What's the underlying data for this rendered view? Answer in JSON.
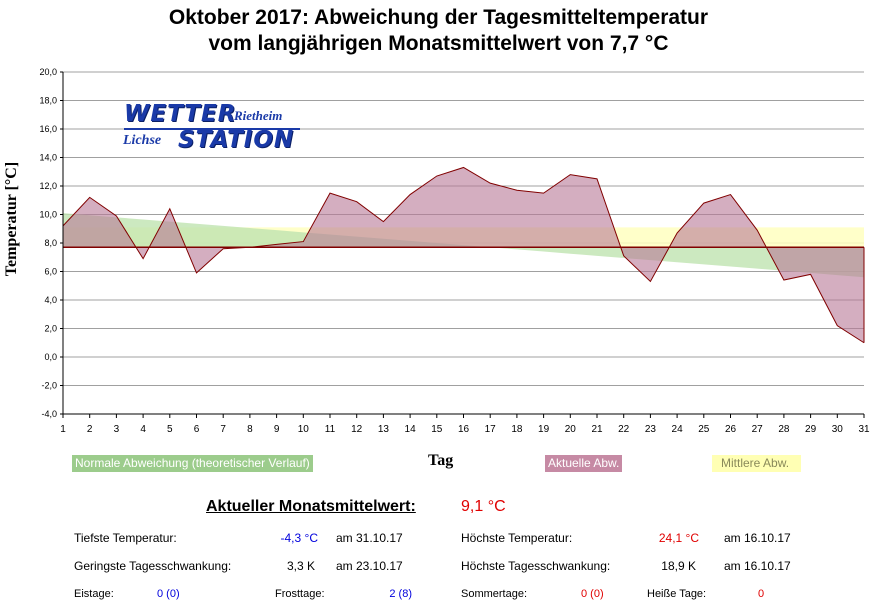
{
  "title": {
    "line1": "Oktober 2017: Abweichung der Tagesmitteltemperatur",
    "line2": "vom langjährigen Monatsmittelwert von 7,7 °C"
  },
  "logo": {
    "wetter": "WETTER",
    "rietheim": "Rietheim",
    "lichse": "Lichse",
    "station": "STATION"
  },
  "legend": {
    "normal": "Normale Abweichung (theoretischer Verlauf)",
    "aktuell": "Aktuelle Abw.",
    "mittel": "Mittlere Abw."
  },
  "colors": {
    "aktuell_fill": "#b87896",
    "aktuell_line": "#800000",
    "normal_fill": "#bfe3b0",
    "mittel_fill": "#ffffc0",
    "baseline": "#800000",
    "grid": "#a0a0a0"
  },
  "chart_data": {
    "type": "area",
    "xlabel": "Tag",
    "ylabel": "Temperatur [°C]",
    "x": [
      1,
      2,
      3,
      4,
      5,
      6,
      7,
      8,
      9,
      10,
      11,
      12,
      13,
      14,
      15,
      16,
      17,
      18,
      19,
      20,
      21,
      22,
      23,
      24,
      25,
      26,
      27,
      28,
      29,
      30,
      31
    ],
    "ylim": [
      -4,
      20
    ],
    "yticks": [
      "-4,0",
      "-2,0",
      "0,0",
      "2,0",
      "4,0",
      "6,0",
      "8,0",
      "10,0",
      "12,0",
      "14,0",
      "16,0",
      "18,0",
      "20,0"
    ],
    "baseline": 7.7,
    "series": [
      {
        "name": "Aktuelle Abw.",
        "values": [
          9.2,
          11.2,
          9.9,
          6.9,
          10.4,
          5.9,
          7.6,
          7.7,
          7.9,
          8.1,
          11.5,
          10.9,
          9.5,
          11.4,
          12.7,
          13.3,
          12.2,
          11.7,
          11.5,
          12.8,
          12.5,
          7.1,
          5.3,
          8.7,
          10.8,
          11.4,
          8.9,
          5.4,
          5.8,
          2.2,
          1.0
        ]
      },
      {
        "name": "Normale Abweichung (theoretischer Verlauf)",
        "values": [
          10.1,
          9.95,
          9.8,
          9.65,
          9.5,
          9.35,
          9.2,
          9.05,
          8.9,
          8.75,
          8.6,
          8.45,
          8.3,
          8.15,
          8.0,
          7.85,
          7.7,
          7.55,
          7.4,
          7.25,
          7.1,
          6.95,
          6.8,
          6.65,
          6.5,
          6.35,
          6.2,
          6.05,
          5.9,
          5.75,
          5.6
        ]
      },
      {
        "name": "Mittlere Abw.",
        "values": [
          9.1,
          9.1,
          9.1,
          9.1,
          9.1,
          9.1,
          9.1,
          9.1,
          9.1,
          9.1,
          9.1,
          9.1,
          9.1,
          9.1,
          9.1,
          9.1,
          9.1,
          9.1,
          9.1,
          9.1,
          9.1,
          9.1,
          9.1,
          9.1,
          9.1,
          9.1,
          9.1,
          9.1,
          9.1,
          9.1,
          9.1
        ]
      }
    ]
  },
  "stats": {
    "title": "Aktueller Monatsmittelwert:",
    "mean": "9,1 °C",
    "tiefste_label": "Tiefste Temperatur:",
    "tiefste_value": "-4,3 °C",
    "tiefste_date": "am 31.10.17",
    "hoechste_label": "Höchste Temperatur:",
    "hoechste_value": "24,1 °C",
    "hoechste_date": "am 16.10.17",
    "geringste_label": "Geringste Tagesschwankung:",
    "geringste_value": "3,3 K",
    "geringste_date": "am 23.10.17",
    "hoechste_schw_label": "Höchste Tagesschwankung:",
    "hoechste_schw_value": "18,9 K",
    "hoechste_schw_date": "am 16.10.17",
    "eistage_label": "Eistage:",
    "eistage_value": "0 (0)",
    "frosttage_label": "Frosttage:",
    "frosttage_value": "2 (8)",
    "sommertage_label": "Sommertage:",
    "sommertage_value": "0 (0)",
    "heisse_label": "Heiße Tage:",
    "heisse_value": "0"
  }
}
